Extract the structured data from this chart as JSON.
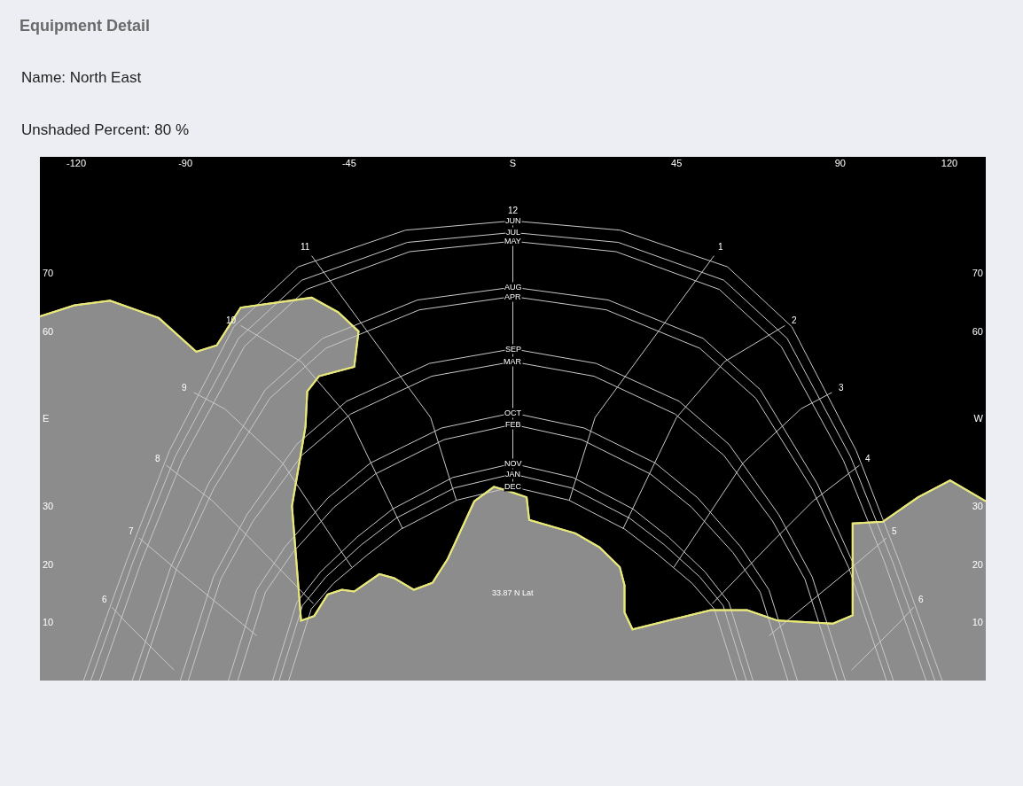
{
  "chart_data": {
    "type": "line",
    "title": "Equipment Detail",
    "annotations": [
      "Name: North East",
      "Unshaded Percent: 80 %",
      "33.87 N Lat"
    ],
    "xlim": [
      -130,
      130
    ],
    "xticks": [
      -120,
      -90,
      -45,
      {
        "value": 0,
        "label": "S"
      },
      45,
      90,
      120
    ],
    "ylim": [
      0,
      90
    ],
    "yticks": [
      10,
      20,
      30,
      {
        "value": 45,
        "label": "E"
      },
      60,
      70
    ],
    "y2lim": [
      0,
      90
    ],
    "y2ticks": [
      10,
      20,
      30,
      {
        "value": 45,
        "label": "W"
      },
      60,
      70
    ],
    "grid": false,
    "legend": false,
    "series": [
      {
        "type": "area",
        "color": "#8c8c8c",
        "x": [
          -130,
          -120.5,
          -110.7,
          -97.3,
          -87,
          -81.4,
          -74.8,
          -55.3,
          -48,
          -42.4,
          -43.6,
          -53.3,
          -56.5,
          -57,
          -60.7,
          -58.2,
          -54.6,
          -50.9,
          -47,
          -43.6,
          -36.7,
          -32.6,
          -27.2,
          -22.1,
          -17.9,
          -10.6,
          -5.2,
          -1.3,
          3.8,
          4.5,
          17.2,
          23.8,
          29.4,
          30.7,
          30.7,
          32.9,
          54.4,
          64.4,
          72.8,
          88,
          93.4,
          93.4,
          101.7,
          111.4,
          120.2,
          130
        ],
        "values": [
          62.6,
          64.5,
          65.3,
          62.3,
          56.5,
          57.6,
          64.1,
          65.8,
          63.3,
          60,
          53.9,
          52.3,
          49.7,
          43.6,
          30,
          10.3,
          11.1,
          14.8,
          15.6,
          15.3,
          18.3,
          17.6,
          15.6,
          16.8,
          20.9,
          30.8,
          33.3,
          32.6,
          31.5,
          27.6,
          25.3,
          22.9,
          19.5,
          16.4,
          11.7,
          8.8,
          12.1,
          12.1,
          10.3,
          9.8,
          11.2,
          27,
          27.3,
          31.5,
          34.4,
          30.8
        ]
      },
      {
        "name": "JUN",
        "color": "#c8c8c8",
        "x": [
          -118,
          -106.2,
          -94.4,
          -76.7,
          -59,
          -29.5,
          0,
          29.5,
          59,
          76.7,
          94.4,
          106.2,
          118
        ],
        "values": [
          0,
          20.5,
          39.5,
          60.8,
          71.1,
          77.4,
          79,
          77.4,
          71.1,
          60.8,
          39.5,
          20.5,
          0
        ]
      },
      {
        "name": "JUL",
        "color": "#c8c8c8",
        "x": [
          -116,
          -104.4,
          -92.8,
          -75.4,
          -58,
          -29,
          0,
          29,
          58,
          75.4,
          92.8,
          104.4,
          116
        ],
        "values": [
          0,
          20.4,
          38.5,
          58.8,
          68.8,
          75.3,
          77,
          75.3,
          68.8,
          58.8,
          38.5,
          20.4,
          0
        ]
      },
      {
        "name": "MAY",
        "color": "#c8c8c8",
        "x": [
          -113.6,
          -102.2,
          -90.9,
          -73.8,
          -56.8,
          -28.4,
          0,
          28.4,
          56.8,
          73.8,
          90.9,
          102.2,
          113.6
        ],
        "values": [
          0,
          20.3,
          37.8,
          57.4,
          67.2,
          73.7,
          75.5,
          73.7,
          67.2,
          57.4,
          37.8,
          20.3,
          0
        ]
      },
      {
        "name": "AUG",
        "color": "#c8c8c8",
        "x": [
          -104.6,
          -94.1,
          -83.7,
          -68,
          -52.3,
          -26.2,
          0,
          26.2,
          52.3,
          68,
          83.7,
          94.1,
          104.6
        ],
        "values": [
          0,
          19.4,
          33.8,
          50,
          58.8,
          65.4,
          67.6,
          65.4,
          58.8,
          50,
          33.8,
          19.4,
          0
        ]
      },
      {
        "name": "APR",
        "color": "#c8c8c8",
        "x": [
          -102.7,
          -92.4,
          -82.2,
          -66.8,
          -51.4,
          -25.7,
          0,
          25.7,
          51.4,
          66.8,
          82.2,
          92.4,
          102.7
        ],
        "values": [
          0,
          19.3,
          33,
          48.5,
          57.1,
          63.7,
          66,
          63.7,
          57.1,
          48.5,
          33,
          19.3,
          0
        ]
      },
      {
        "name": "SEP",
        "color": "#c8c8c8",
        "x": [
          -91.4,
          -82.3,
          -73.1,
          -59.4,
          -45.7,
          -22.9,
          0,
          22.9,
          45.7,
          59.4,
          73.1,
          82.3,
          91.4
        ],
        "values": [
          0,
          17.8,
          28.5,
          40.6,
          48,
          54.5,
          57,
          54.5,
          48,
          40.6,
          28.5,
          17.8,
          0
        ]
      },
      {
        "name": "MAR",
        "color": "#c8c8c8",
        "x": [
          -89.2,
          -80.3,
          -71.4,
          -58,
          -44.6,
          -22.3,
          0,
          22.3,
          44.6,
          58,
          71.4,
          80.3,
          89.2
        ],
        "values": [
          0,
          17.4,
          27.4,
          38.7,
          45.8,
          52.3,
          54.8,
          52.3,
          45.8,
          38.7,
          27.4,
          17.4,
          0
        ]
      },
      {
        "name": "OCT",
        "color": "#c8c8c8",
        "x": [
          -78.2,
          -70.4,
          -62.6,
          -50.8,
          -39.1,
          -19.6,
          0,
          19.6,
          39.1,
          50.8,
          62.6,
          70.4,
          78.2
        ],
        "values": [
          0,
          15.6,
          23,
          31.4,
          37.4,
          43.4,
          46,
          43.4,
          37.4,
          31.4,
          23,
          15.6,
          0
        ]
      },
      {
        "name": "FEB",
        "color": "#c8c8c8",
        "x": [
          -75.6,
          -68,
          -60.5,
          -49.1,
          -37.8,
          -18.9,
          0,
          18.9,
          37.8,
          49.1,
          60.5,
          68,
          75.6
        ],
        "values": [
          0,
          15.2,
          22,
          29.8,
          35.5,
          41.4,
          44,
          41.4,
          35.5,
          29.8,
          22,
          15.2,
          0
        ]
      },
      {
        "name": "NOV",
        "color": "#c8c8c8",
        "x": [
          -66,
          -59.4,
          -52.8,
          -42.9,
          -33,
          -16.5,
          0,
          16.5,
          33,
          42.9,
          52.8,
          59.4,
          66
        ],
        "values": [
          0,
          13.4,
          18.7,
          24.6,
          29.5,
          34.9,
          37.3,
          34.9,
          29.5,
          24.6,
          18.7,
          13.4,
          0
        ]
      },
      {
        "name": "JAN",
        "color": "#c8c8c8",
        "x": [
          -64.2,
          -57.8,
          -51.4,
          -41.7,
          -32.1,
          -16.1,
          0,
          16.1,
          32.1,
          41.7,
          51.4,
          57.8,
          64.2
        ],
        "values": [
          0,
          12.9,
          17.8,
          23.3,
          27.9,
          33.1,
          35.5,
          33.1,
          27.9,
          23.3,
          17.8,
          12.9,
          0
        ]
      },
      {
        "name": "DEC",
        "color": "#c8c8c8",
        "x": [
          -61.6,
          -55.4,
          -49.3,
          -40,
          -30.8,
          -15.4,
          0,
          15.4,
          30.8,
          40,
          49.3,
          55.4,
          61.6
        ],
        "values": [
          0,
          12.3,
          16.7,
          21.6,
          26,
          31,
          33.3,
          31,
          26,
          21.6,
          16.7,
          12.3,
          0
        ]
      },
      {
        "name": "12",
        "color": "#c8c8c8",
        "x": [
          0,
          0
        ],
        "values": [
          79,
          33.3
        ]
      },
      {
        "name": "11",
        "color": "#c8c8c8",
        "x": [
          -55.3,
          -22.6,
          -15.5
        ],
        "values": [
          73,
          45.2,
          30.9
        ]
      },
      {
        "name": "1",
        "color": "#c8c8c8",
        "x": [
          55.3,
          22.6,
          15.5
        ],
        "values": [
          73,
          45.2,
          30.9
        ]
      },
      {
        "name": "10",
        "color": "#c8c8c8",
        "x": [
          -74.8,
          -58.2,
          -45,
          -30.3
        ],
        "values": [
          61,
          54.8,
          45.2,
          26.1
        ]
      },
      {
        "name": "2",
        "color": "#c8c8c8",
        "x": [
          74.8,
          58.2,
          45,
          30.3
        ],
        "values": [
          61,
          54.8,
          45.2,
          26.1
        ]
      },
      {
        "name": "9",
        "color": "#c8c8c8",
        "x": [
          -87.7,
          -79.2,
          -63.3,
          -44.3
        ],
        "values": [
          49.5,
          46.7,
          37.4,
          19.5
        ]
      },
      {
        "name": "3",
        "color": "#c8c8c8",
        "x": [
          87.7,
          79.2,
          63.3,
          44.3
        ],
        "values": [
          49.5,
          46.7,
          37.4,
          19.5
        ]
      },
      {
        "name": "8",
        "color": "#c8c8c8",
        "x": [
          -95.3,
          -82.6,
          -71.4,
          -54.8
        ],
        "values": [
          37,
          30.9,
          23.9,
          13.2
        ]
      },
      {
        "name": "4",
        "color": "#c8c8c8",
        "x": [
          95.3,
          82.6,
          71.4,
          54.8
        ],
        "values": [
          37,
          30.9,
          23.9,
          13.2
        ]
      },
      {
        "name": "7",
        "color": "#c8c8c8",
        "x": [
          -102.7,
          -91.4,
          -70.4
        ],
        "values": [
          24.5,
          18.5,
          7.7
        ]
      },
      {
        "name": "5",
        "color": "#c8c8c8",
        "x": [
          102.7,
          91.4,
          70.4
        ],
        "values": [
          24.5,
          18.5,
          7.7
        ]
      },
      {
        "name": "6",
        "color": "#c8c8c8",
        "x": [
          -110.2,
          -106,
          -93.1
        ],
        "values": [
          12.6,
          9.8,
          1.8
        ]
      },
      {
        "name": "6",
        "color": "#c8c8c8",
        "x": [
          110.2,
          106,
          93.1
        ],
        "values": [
          12.6,
          9.8,
          1.8
        ]
      }
    ]
  }
}
